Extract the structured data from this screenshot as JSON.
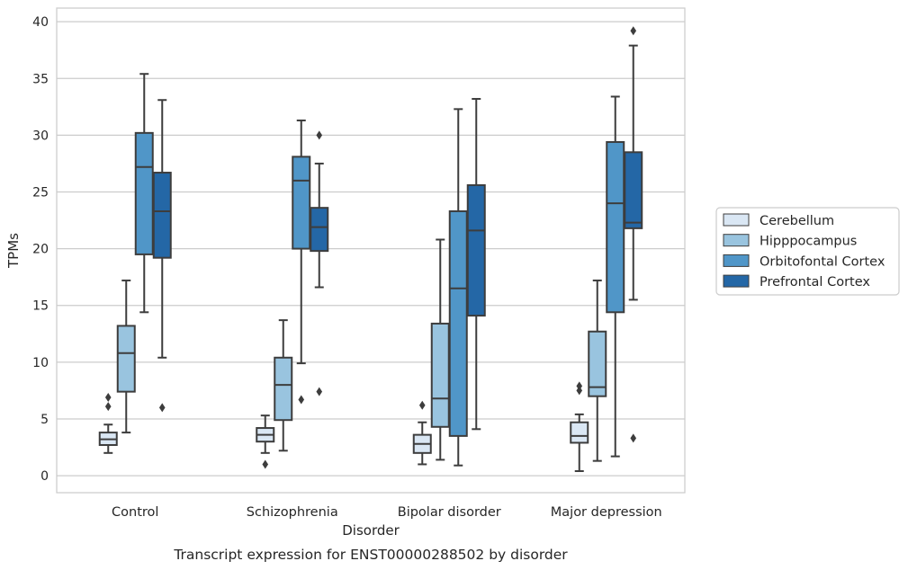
{
  "chart_data": {
    "type": "box",
    "caption": "Transcript expression for ENST00000288502 by disorder",
    "xlabel": "Disorder",
    "ylabel": "TPMs",
    "ylim": [
      -1.5,
      41.2
    ],
    "yticks": [
      0,
      5,
      10,
      15,
      20,
      25,
      30,
      35,
      40
    ],
    "grid": true,
    "legend_position": "right",
    "categories": [
      "Control",
      "Schizophrenia",
      "Bipolar disorder",
      "Major depression"
    ],
    "series": [
      {
        "name": "Cerebellum",
        "color": "#dae7f4",
        "boxes": [
          {
            "whisker_low": 2.0,
            "q1": 2.7,
            "median": 3.2,
            "q3": 3.8,
            "whisker_high": 4.5,
            "outliers": [
              6.1,
              6.9
            ]
          },
          {
            "whisker_low": 2.0,
            "q1": 3.0,
            "median": 3.6,
            "q3": 4.2,
            "whisker_high": 5.3,
            "outliers": [
              1.0
            ]
          },
          {
            "whisker_low": 1.0,
            "q1": 2.0,
            "median": 2.8,
            "q3": 3.6,
            "whisker_high": 4.7,
            "outliers": [
              6.2
            ]
          },
          {
            "whisker_low": 0.4,
            "q1": 2.9,
            "median": 3.5,
            "q3": 4.7,
            "whisker_high": 5.4,
            "outliers": [
              7.5,
              7.9
            ]
          }
        ]
      },
      {
        "name": "Hipppocampus",
        "color": "#99c4df",
        "boxes": [
          {
            "whisker_low": 3.8,
            "q1": 7.4,
            "median": 10.8,
            "q3": 13.2,
            "whisker_high": 17.2,
            "outliers": []
          },
          {
            "whisker_low": 2.2,
            "q1": 4.9,
            "median": 8.0,
            "q3": 10.4,
            "whisker_high": 13.7,
            "outliers": []
          },
          {
            "whisker_low": 1.4,
            "q1": 4.3,
            "median": 6.8,
            "q3": 13.4,
            "whisker_high": 20.8,
            "outliers": []
          },
          {
            "whisker_low": 1.3,
            "q1": 7.0,
            "median": 7.8,
            "q3": 12.7,
            "whisker_high": 17.2,
            "outliers": []
          }
        ]
      },
      {
        "name": "Orbitofontal Cortex",
        "color": "#5096c8",
        "boxes": [
          {
            "whisker_low": 14.4,
            "q1": 19.5,
            "median": 27.2,
            "q3": 30.2,
            "whisker_high": 35.4,
            "outliers": []
          },
          {
            "whisker_low": 9.9,
            "q1": 20.0,
            "median": 26.0,
            "q3": 28.1,
            "whisker_high": 31.3,
            "outliers": [
              6.7
            ]
          },
          {
            "whisker_low": 0.9,
            "q1": 3.5,
            "median": 16.5,
            "q3": 23.3,
            "whisker_high": 32.3,
            "outliers": []
          },
          {
            "whisker_low": 1.7,
            "q1": 14.4,
            "median": 24.0,
            "q3": 29.4,
            "whisker_high": 33.4,
            "outliers": []
          }
        ]
      },
      {
        "name": "Prefrontal Cortex",
        "color": "#2467a6",
        "boxes": [
          {
            "whisker_low": 10.4,
            "q1": 19.2,
            "median": 23.3,
            "q3": 26.7,
            "whisker_high": 33.1,
            "outliers": [
              6.0
            ]
          },
          {
            "whisker_low": 16.6,
            "q1": 19.8,
            "median": 21.9,
            "q3": 23.6,
            "whisker_high": 27.5,
            "outliers": [
              7.4,
              30.0
            ]
          },
          {
            "whisker_low": 4.1,
            "q1": 14.1,
            "median": 21.6,
            "q3": 25.6,
            "whisker_high": 33.2,
            "outliers": []
          },
          {
            "whisker_low": 15.5,
            "q1": 21.8,
            "median": 22.3,
            "q3": 28.5,
            "whisker_high": 37.9,
            "outliers": [
              3.3,
              39.2
            ]
          }
        ]
      }
    ]
  }
}
